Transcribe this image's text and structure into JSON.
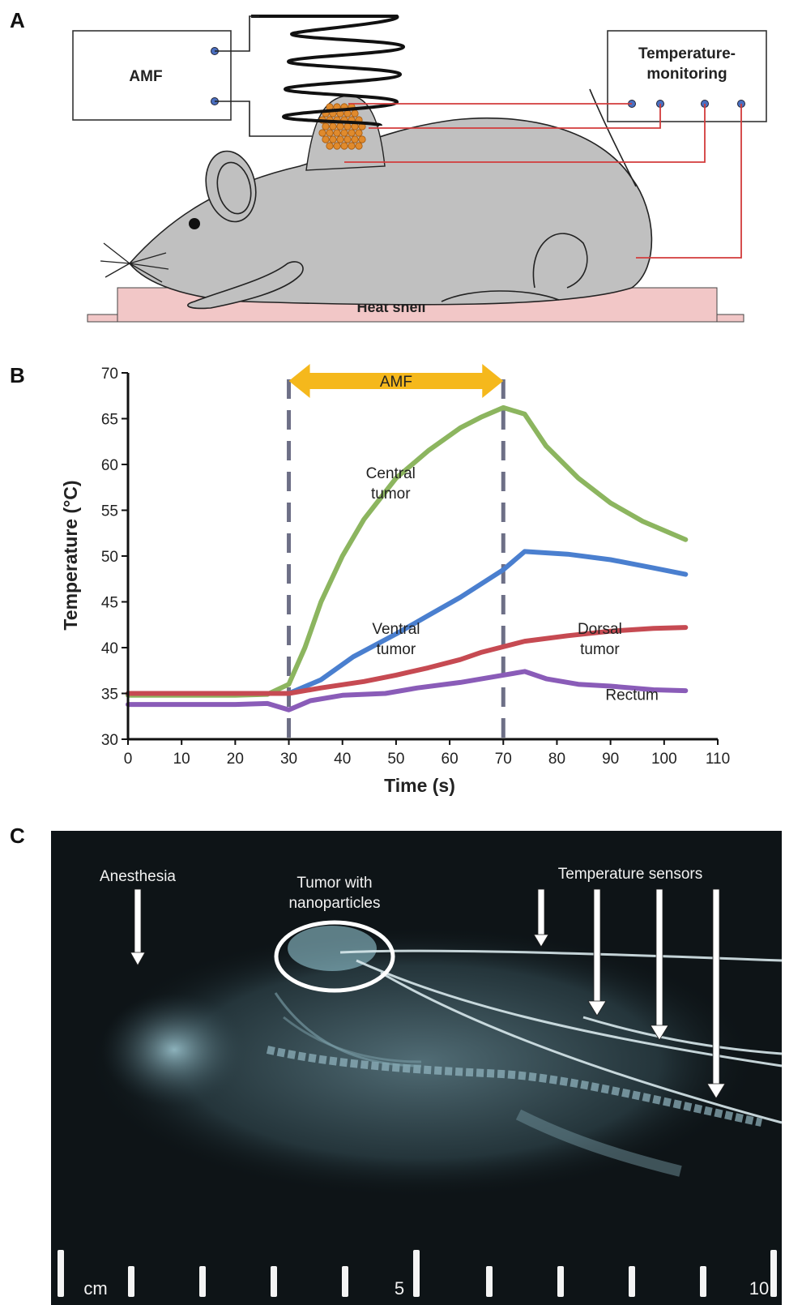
{
  "panels": {
    "a": "A",
    "b": "B",
    "c": "C"
  },
  "diagram": {
    "amf_box": "AMF",
    "temp_box": [
      "Temperature-",
      "monitoring"
    ],
    "heat_shell": "Heat shell",
    "colors": {
      "mouse": "#c0c0c0",
      "heat_shell": "#f2c7c7",
      "wire": "#d23b3b",
      "nanoparticle": "#e08a2c"
    }
  },
  "chart_data": {
    "type": "line",
    "xlabel": "Time (s)",
    "ylabel": "Temperature (°C)",
    "xlim": [
      0,
      110
    ],
    "ylim": [
      30,
      70
    ],
    "xticks": [
      0,
      10,
      20,
      30,
      40,
      50,
      60,
      70,
      80,
      90,
      100,
      110
    ],
    "yticks": [
      30,
      35,
      40,
      45,
      50,
      55,
      60,
      65,
      70
    ],
    "amf_window": {
      "label": "AMF",
      "start": 30,
      "end": 70,
      "color": "#f5b81c"
    },
    "series": [
      {
        "name": "Central tumor",
        "label_lines": [
          "Central",
          "tumor"
        ],
        "label_at": [
          49,
          58.5
        ],
        "color": "#8cb55f",
        "x": [
          0,
          10,
          20,
          26,
          30,
          33,
          36,
          40,
          44,
          50,
          56,
          62,
          66,
          70,
          74,
          78,
          84,
          90,
          96,
          104
        ],
        "y": [
          34.8,
          34.8,
          34.8,
          34.9,
          36,
          40,
          45,
          50,
          54,
          58.5,
          61.5,
          64,
          65.2,
          66.2,
          65.5,
          62,
          58.5,
          55.8,
          53.8,
          51.8
        ]
      },
      {
        "name": "Ventral tumor",
        "label_lines": [
          "Ventral",
          "tumor"
        ],
        "label_at": [
          50,
          41.5
        ],
        "color": "#4a7fcf",
        "x": [
          0,
          10,
          20,
          26,
          30,
          36,
          42,
          50,
          56,
          62,
          66,
          70,
          74,
          82,
          90,
          98,
          104
        ],
        "y": [
          35,
          35,
          35,
          35,
          35,
          36.5,
          39,
          41.5,
          43.5,
          45.5,
          47,
          48.5,
          50.5,
          50.2,
          49.6,
          48.7,
          48
        ]
      },
      {
        "name": "Dorsal tumor",
        "label_lines": [
          "Dorsal",
          "tumor"
        ],
        "label_at": [
          88,
          41.5
        ],
        "color": "#c64a52",
        "x": [
          0,
          10,
          20,
          26,
          30,
          36,
          44,
          50,
          56,
          62,
          66,
          70,
          74,
          82,
          90,
          98,
          104
        ],
        "y": [
          35,
          35,
          35,
          35,
          35,
          35.6,
          36.3,
          37,
          37.8,
          38.7,
          39.5,
          40.1,
          40.7,
          41.3,
          41.8,
          42.1,
          42.2
        ]
      },
      {
        "name": "Rectum",
        "label_lines": [
          "Rectum"
        ],
        "label_at": [
          94,
          34.3
        ],
        "color": "#8a5cb8",
        "x": [
          0,
          10,
          20,
          26,
          30,
          34,
          40,
          48,
          54,
          62,
          66,
          70,
          74,
          78,
          84,
          90,
          98,
          104
        ],
        "y": [
          33.8,
          33.8,
          33.8,
          33.9,
          33.2,
          34.2,
          34.8,
          35,
          35.6,
          36.2,
          36.6,
          37,
          37.4,
          36.6,
          36,
          35.8,
          35.4,
          35.3
        ]
      }
    ]
  },
  "xray": {
    "anesthesia": "Anesthesia",
    "tumor_label": [
      "Tumor with",
      "nanoparticles"
    ],
    "sensors_label": "Temperature sensors",
    "scale": {
      "unit": "cm",
      "mid": "5",
      "end": "10"
    }
  }
}
